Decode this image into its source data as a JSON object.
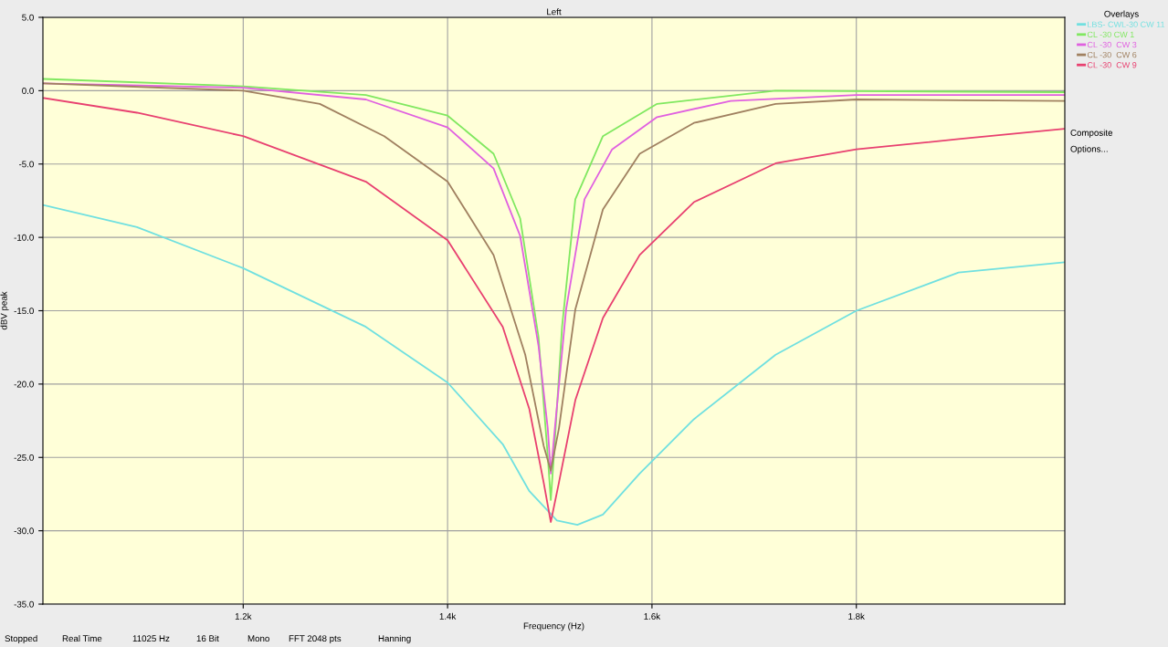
{
  "chart_data": {
    "type": "line",
    "title": "Left",
    "xlabel": "Frequency (Hz)",
    "ylabel": "dBV peak",
    "xlim": [
      1004,
      2004
    ],
    "ylim": [
      -35,
      5
    ],
    "xticks": [
      {
        "value": 1200,
        "label": "1.2k"
      },
      {
        "value": 1400,
        "label": "1.4k"
      },
      {
        "value": 1600,
        "label": "1.6k"
      },
      {
        "value": 1800,
        "label": "1.8k"
      }
    ],
    "yticks": [
      {
        "value": 5,
        "label": "5.0"
      },
      {
        "value": 0,
        "label": "0.0"
      },
      {
        "value": -5,
        "label": "-5.0"
      },
      {
        "value": -10,
        "label": "-10.0"
      },
      {
        "value": -15,
        "label": "-15.0"
      },
      {
        "value": -20,
        "label": "-20.0"
      },
      {
        "value": -25,
        "label": "-25.0"
      },
      {
        "value": -30,
        "label": "-30.0"
      },
      {
        "value": -35,
        "label": "-35.0"
      }
    ],
    "grid": true,
    "legend": "top right",
    "legend_title": "Overlays",
    "series": [
      {
        "name": "LBS- CWL-30 CW 11",
        "color": "#70e0e0",
        "x": [
          1005,
          1096,
          1200,
          1320,
          1400,
          1454,
          1480,
          1507,
          1527,
          1552,
          1588,
          1641,
          1721,
          1800,
          1900,
          2003
        ],
        "values": [
          -7.8,
          -9.3,
          -12.1,
          -16.1,
          -19.9,
          -24.1,
          -27.3,
          -29.3,
          -29.6,
          -28.9,
          -26.1,
          -22.4,
          -18.0,
          -15.0,
          -12.4,
          -11.7
        ]
      },
      {
        "name": "CL -30 CW 1",
        "color": "#80e860",
        "x": [
          1005,
          1200,
          1320,
          1400,
          1445,
          1471,
          1489,
          1498,
          1501,
          1504,
          1512,
          1525,
          1552,
          1605,
          1721,
          2003
        ],
        "values": [
          0.8,
          0.3,
          -0.3,
          -1.7,
          -4.3,
          -8.7,
          -16.8,
          -24.9,
          -27.9,
          -24.9,
          -16.1,
          -7.4,
          -3.1,
          -0.9,
          0.0,
          -0.1
        ]
      },
      {
        "name": "CL -30  CW 3",
        "color": "#e060e0",
        "x": [
          1005,
          1200,
          1320,
          1400,
          1445,
          1471,
          1489,
          1498,
          1501,
          1505,
          1516,
          1534,
          1561,
          1605,
          1677,
          1800,
          2003
        ],
        "values": [
          0.5,
          0.2,
          -0.6,
          -2.5,
          -5.3,
          -9.9,
          -17.4,
          -23.0,
          -26.1,
          -23.0,
          -14.9,
          -7.4,
          -4.0,
          -1.8,
          -0.7,
          -0.3,
          -0.3
        ]
      },
      {
        "name": "CL -30  CW 6",
        "color": "#a08060",
        "x": [
          1005,
          1200,
          1275,
          1338,
          1400,
          1445,
          1476,
          1494,
          1501,
          1509,
          1525,
          1552,
          1588,
          1641,
          1721,
          1800,
          2003
        ],
        "values": [
          0.5,
          0.0,
          -0.9,
          -3.1,
          -6.2,
          -11.2,
          -18.0,
          -24.2,
          -25.9,
          -23.0,
          -14.9,
          -8.1,
          -4.3,
          -2.2,
          -0.9,
          -0.6,
          -0.7
        ]
      },
      {
        "name": "CL -30  CW 9",
        "color": "#e84070",
        "x": [
          1005,
          1096,
          1200,
          1320,
          1400,
          1454,
          1480,
          1494,
          1501,
          1509,
          1525,
          1552,
          1588,
          1641,
          1721,
          1800,
          1900,
          2003
        ],
        "values": [
          -0.5,
          -1.5,
          -3.1,
          -6.2,
          -10.2,
          -16.1,
          -21.7,
          -26.7,
          -29.4,
          -26.7,
          -21.1,
          -15.5,
          -11.2,
          -7.6,
          -4.95,
          -4.0,
          -3.3,
          -2.6
        ]
      }
    ],
    "annotations": [
      "Composite",
      "Options...",
      "Stopped",
      "Real Time",
      "11025 Hz",
      "16 Bit",
      "Mono",
      "FFT 2048 pts",
      "Hanning"
    ]
  }
}
